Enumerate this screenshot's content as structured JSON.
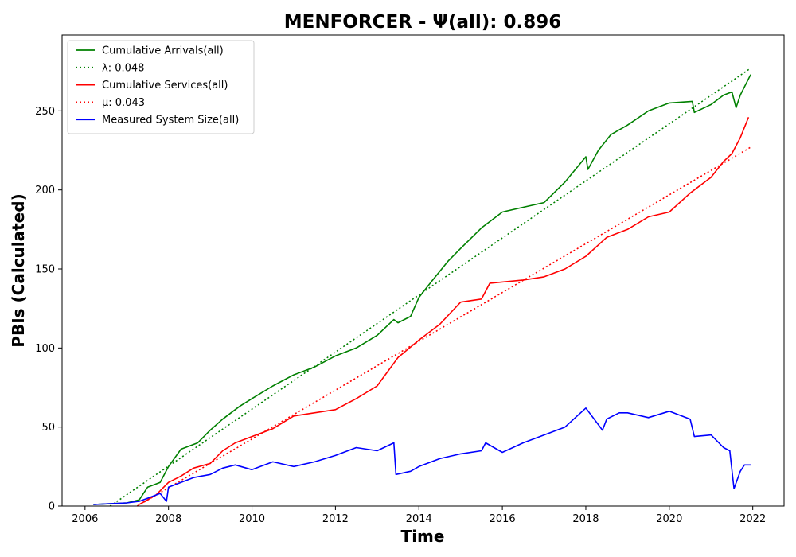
{
  "chart_data": {
    "type": "line",
    "title": "MENFORCER -  Ψ(all): 0.896",
    "xlabel": "Time",
    "ylabel": "PBIs (Calculated)",
    "xlim": [
      2005.45,
      2022.75
    ],
    "ylim": [
      0,
      298
    ],
    "xticks": [
      "2006",
      "2008",
      "2010",
      "2012",
      "2014",
      "2016",
      "2018",
      "2020",
      "2022"
    ],
    "yticks": [
      "0",
      "50",
      "100",
      "150",
      "200",
      "250"
    ],
    "legend_position": "upper-left",
    "grid": false,
    "series": [
      {
        "name": "Cumulative Arrivals(all)",
        "color": "#008000",
        "style": "solid",
        "x": [
          2006.2,
          2007.0,
          2007.3,
          2007.5,
          2007.8,
          2008.0,
          2008.3,
          2008.7,
          2009.0,
          2009.3,
          2009.7,
          2010.0,
          2010.5,
          2011.0,
          2011.5,
          2012.0,
          2012.5,
          2013.0,
          2013.4,
          2013.5,
          2013.8,
          2014.0,
          2014.3,
          2014.7,
          2015.0,
          2015.5,
          2016.0,
          2016.5,
          2017.0,
          2017.5,
          2018.0,
          2018.05,
          2018.3,
          2018.6,
          2019.0,
          2019.5,
          2020.0,
          2020.55,
          2020.6,
          2021.0,
          2021.3,
          2021.5,
          2021.6,
          2021.7,
          2021.95
        ],
        "y": [
          1,
          2,
          4,
          12,
          15,
          25,
          36,
          40,
          48,
          55,
          63,
          68,
          76,
          83,
          88,
          95,
          100,
          108,
          118,
          116,
          120,
          132,
          142,
          155,
          163,
          176,
          186,
          189,
          192,
          205,
          221,
          213,
          225,
          235,
          241,
          250,
          255,
          256,
          249,
          254,
          260,
          262,
          252,
          260,
          273
        ]
      },
      {
        "name": "λ: 0.048",
        "color": "#008000",
        "style": "dotted",
        "x": [
          2006.6,
          2021.95
        ],
        "y": [
          0,
          277
        ]
      },
      {
        "name": "Cumulative Services(all)",
        "color": "#ff0000",
        "style": "solid",
        "x": [
          2007.3,
          2007.7,
          2008.0,
          2008.3,
          2008.6,
          2009.0,
          2009.3,
          2009.6,
          2010.0,
          2010.5,
          2011.0,
          2012.0,
          2012.5,
          2013.0,
          2013.5,
          2014.0,
          2014.5,
          2015.0,
          2015.5,
          2015.7,
          2016.5,
          2017.0,
          2017.5,
          2018.0,
          2018.5,
          2019.0,
          2019.5,
          2020.0,
          2020.5,
          2021.0,
          2021.3,
          2021.5,
          2021.7,
          2021.9
        ],
        "y": [
          1,
          7,
          15,
          19,
          24,
          27,
          35,
          40,
          44,
          49,
          57,
          61,
          68,
          76,
          94,
          105,
          115,
          129,
          131,
          141,
          143,
          145,
          150,
          158,
          170,
          175,
          183,
          186,
          198,
          208,
          218,
          223,
          233,
          246
        ]
      },
      {
        "name": "μ: 0.043",
        "color": "#ff0000",
        "style": "dotted",
        "x": [
          2007.25,
          2021.95
        ],
        "y": [
          0,
          227
        ]
      },
      {
        "name": "Measured System Size(all)",
        "color": "#0000ff",
        "style": "solid",
        "x": [
          2006.2,
          2007.0,
          2007.3,
          2007.5,
          2007.8,
          2007.95,
          2008.0,
          2008.3,
          2008.6,
          2009.0,
          2009.3,
          2009.6,
          2010.0,
          2010.5,
          2011.0,
          2011.5,
          2012.0,
          2012.5,
          2013.0,
          2013.4,
          2013.45,
          2013.8,
          2014.0,
          2014.5,
          2015.0,
          2015.5,
          2015.6,
          2016.0,
          2016.5,
          2016.9,
          2017.5,
          2018.0,
          2018.4,
          2018.5,
          2018.8,
          2019.0,
          2019.5,
          2020.0,
          2020.5,
          2020.6,
          2021.0,
          2021.3,
          2021.45,
          2021.55,
          2021.7,
          2021.8,
          2021.95
        ],
        "y": [
          1,
          2,
          3,
          5,
          8,
          3,
          12,
          15,
          18,
          20,
          24,
          26,
          23,
          28,
          25,
          28,
          32,
          37,
          35,
          40,
          20,
          22,
          25,
          30,
          33,
          35,
          40,
          34,
          40,
          44,
          50,
          62,
          48,
          55,
          59,
          59,
          56,
          60,
          55,
          44,
          45,
          37,
          35,
          11,
          22,
          26,
          26
        ]
      }
    ]
  }
}
